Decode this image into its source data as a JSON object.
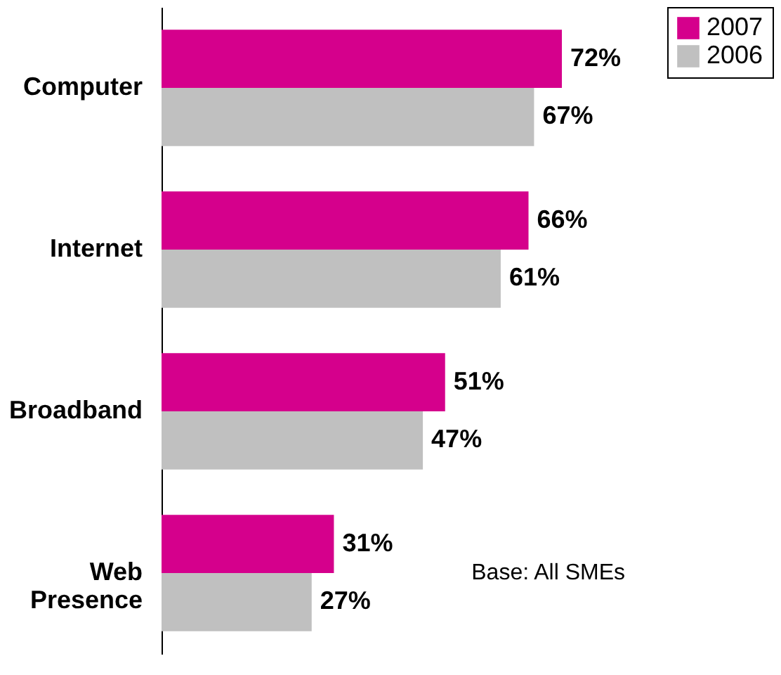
{
  "chart_data": {
    "type": "bar",
    "orientation": "horizontal",
    "categories": [
      "Computer",
      "Internet",
      "Broadband",
      "Web Presence"
    ],
    "series": [
      {
        "name": "2007",
        "color": "#d5008c",
        "values": [
          72,
          66,
          51,
          31
        ],
        "value_labels": [
          "72%",
          "66%",
          "51%",
          "31%"
        ]
      },
      {
        "name": "2006",
        "color": "#c0c0c0",
        "values": [
          67,
          61,
          47,
          27
        ],
        "value_labels": [
          "67%",
          "61%",
          "47%",
          "27%"
        ]
      }
    ],
    "legend": "right",
    "annotations": [
      "Base: All SMEs"
    ]
  }
}
